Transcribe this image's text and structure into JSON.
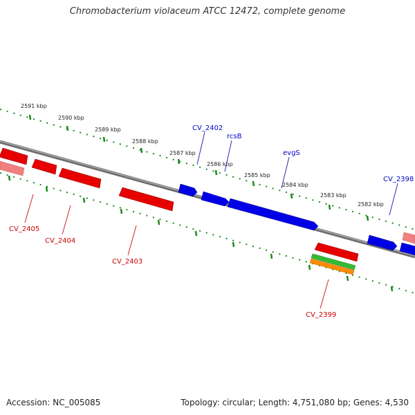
{
  "title": "Chromobacterium violaceum ATCC 12472, complete genome",
  "footer": {
    "accession": "Accession: NC_005085",
    "summary": "Topology: circular; Length: 4,751,080 bp; Genes: 4,530"
  },
  "colors": {
    "forward_gene": "#0000e6",
    "reverse_gene": "#e60000",
    "reverse_gene_light": "#f08080",
    "green_feature": "#33bb33",
    "orange_feature": "#ff8c00",
    "backbone": "#808080",
    "tick": "#1a8a1a"
  },
  "scale_labels": [
    "2591 kbp",
    "2590 kbp",
    "2589 kbp",
    "2588 kbp",
    "2587 kbp",
    "2586 kbp",
    "2585 kbp",
    "2584 kbp",
    "2583 kbp",
    "2582 kbp"
  ],
  "forward_gene_labels": [
    "CV_2402",
    "rcsB",
    "evgS",
    "CV_2398"
  ],
  "reverse_gene_labels": [
    "CV_2405",
    "CV_2404",
    "CV_2403",
    "CV_2399"
  ]
}
